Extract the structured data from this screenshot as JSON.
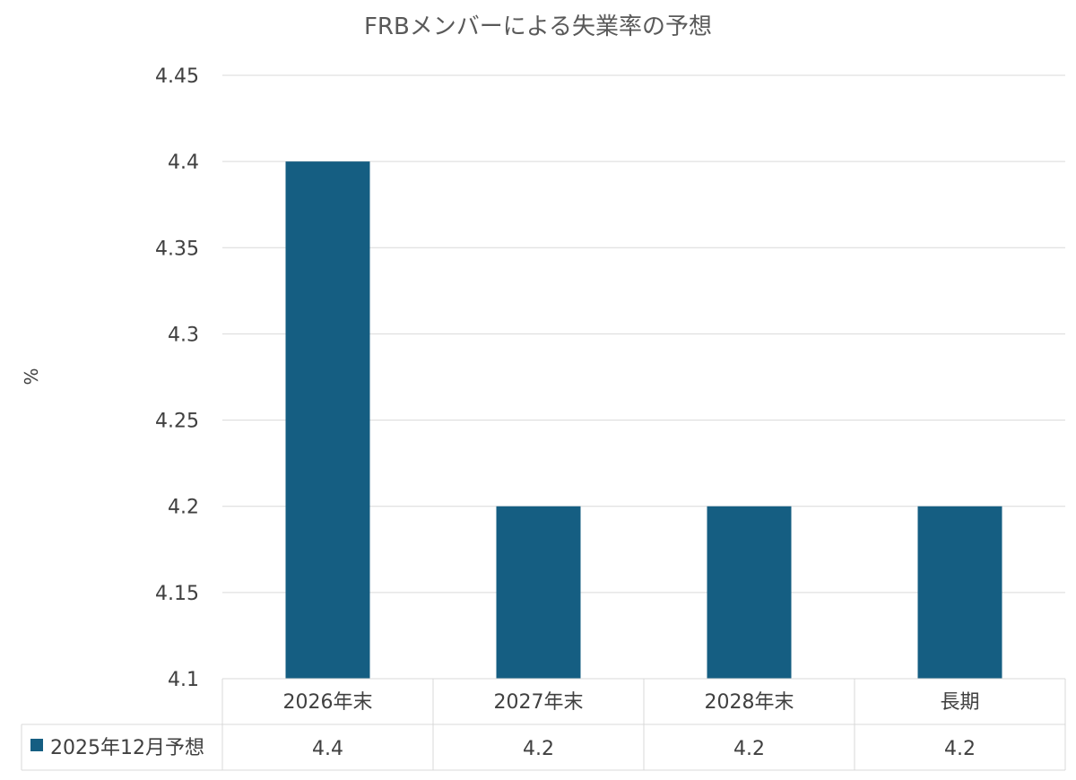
{
  "chart_data": {
    "type": "bar",
    "title": "FRBメンバーによる失業率の予想",
    "ylabel": "%",
    "xlabel": "",
    "categories": [
      "2026年末",
      "2027年末",
      "2028年末",
      "長期"
    ],
    "series": [
      {
        "name": "2025年12月予想",
        "values": [
          4.4,
          4.2,
          4.2,
          4.2
        ],
        "color": "#155E82"
      }
    ],
    "ylim": [
      4.1,
      4.45
    ],
    "yticks": [
      "4.1",
      "4.15",
      "4.2",
      "4.25",
      "4.3",
      "4.35",
      "4.4",
      "4.45"
    ],
    "grid": true,
    "data_table": true,
    "data_table_values": [
      "4.4",
      "4.2",
      "4.2",
      "4.2"
    ]
  }
}
